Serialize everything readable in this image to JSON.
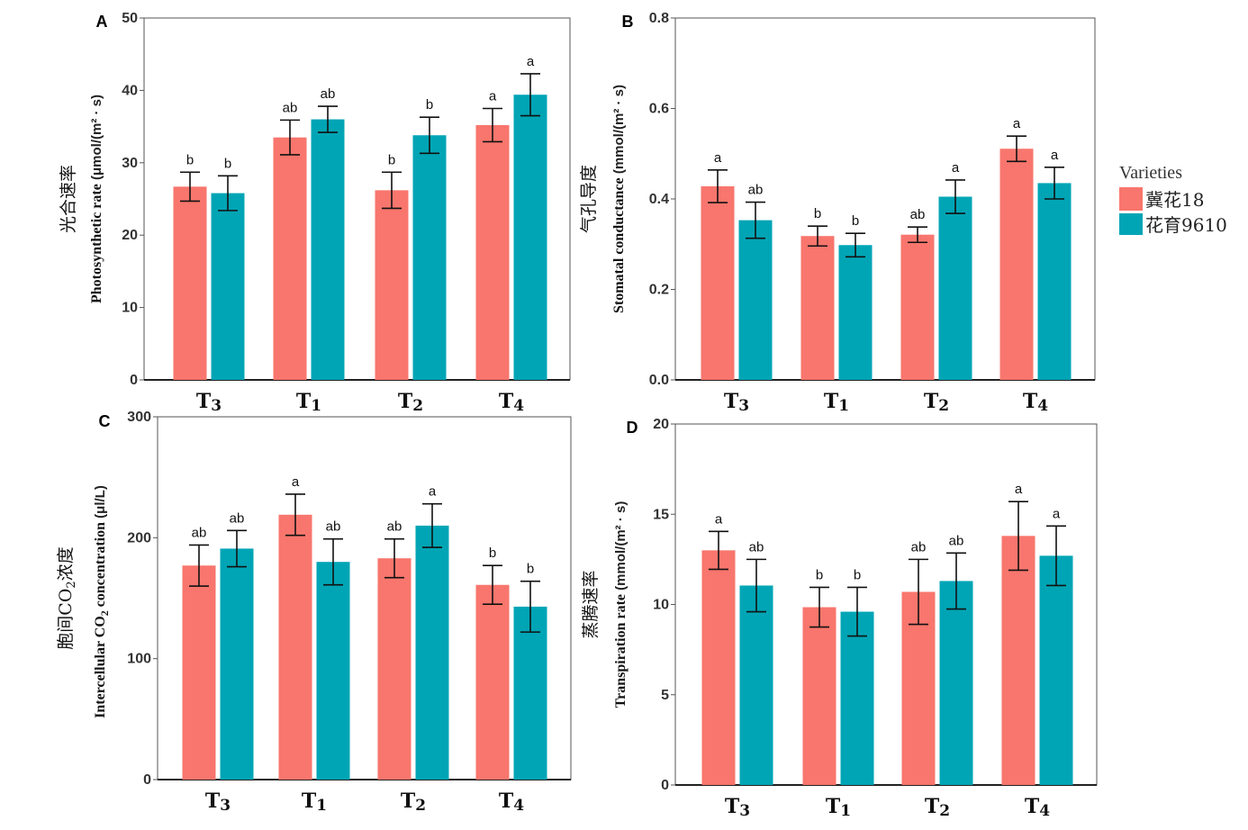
{
  "legend": {
    "title": "Varieties",
    "entries": [
      {
        "label": "冀花18",
        "color": "#F8766D"
      },
      {
        "label": "花育9610",
        "color": "#00A5B5"
      }
    ]
  },
  "chart_data": [
    {
      "panel": "A",
      "type": "bar",
      "ylabel_cn": "光合速率",
      "ylabel_en": "Photosynthetic rate",
      "ylabel_unit": "(μmol/(m² · s)",
      "ylim": [
        0,
        50
      ],
      "yticks": [
        "0",
        "10",
        "20",
        "30",
        "40",
        "50"
      ],
      "categories": [
        {
          "letter": "T",
          "sub": "3"
        },
        {
          "letter": "T",
          "sub": "1"
        },
        {
          "letter": "T",
          "sub": "2"
        },
        {
          "letter": "T",
          "sub": "4"
        }
      ],
      "series": [
        {
          "name": "冀花18",
          "values": [
            26.7,
            33.5,
            26.2,
            35.2
          ],
          "errors": [
            2.0,
            2.4,
            2.5,
            2.3
          ],
          "sig": [
            "b",
            "ab",
            "b",
            "a"
          ]
        },
        {
          "name": "花育9610",
          "values": [
            25.8,
            36.0,
            33.8,
            39.4
          ],
          "errors": [
            2.4,
            1.8,
            2.5,
            2.9
          ],
          "sig": [
            "b",
            "ab",
            "b",
            "a"
          ]
        }
      ]
    },
    {
      "panel": "B",
      "type": "bar",
      "ylabel_cn": "气孔导度",
      "ylabel_en": "Stomatal conductance",
      "ylabel_unit": "(mmol/(m² · s)",
      "ylim": [
        0,
        0.8
      ],
      "yticks": [
        "0.0",
        "0.2",
        "0.4",
        "0.6",
        "0.8"
      ],
      "categories": [
        {
          "letter": "T",
          "sub": "3"
        },
        {
          "letter": "T",
          "sub": "1"
        },
        {
          "letter": "T",
          "sub": "2"
        },
        {
          "letter": "T",
          "sub": "4"
        }
      ],
      "series": [
        {
          "name": "冀花18",
          "values": [
            0.428,
            0.318,
            0.321,
            0.511
          ],
          "errors": [
            0.036,
            0.022,
            0.017,
            0.028
          ],
          "sig": [
            "a",
            "b",
            "ab",
            "a"
          ]
        },
        {
          "name": "花育9610",
          "values": [
            0.353,
            0.298,
            0.405,
            0.435
          ],
          "errors": [
            0.04,
            0.026,
            0.037,
            0.035
          ],
          "sig": [
            "ab",
            "b",
            "a",
            "a"
          ]
        }
      ]
    },
    {
      "panel": "C",
      "type": "bar",
      "ylabel_cn_a": "胞间CO",
      "ylabel_cn_b": "浓度",
      "ylabel_en_a": "Intercellular CO",
      "ylabel_en_b": " concentration",
      "ylabel_sub": "2",
      "ylabel_unit": "(μl/L)",
      "ylim": [
        0,
        300
      ],
      "yticks": [
        "0",
        "100",
        "200",
        "300"
      ],
      "categories": [
        {
          "letter": "T",
          "sub": "3"
        },
        {
          "letter": "T",
          "sub": "1"
        },
        {
          "letter": "T",
          "sub": "2"
        },
        {
          "letter": "T",
          "sub": "4"
        }
      ],
      "series": [
        {
          "name": "冀花18",
          "values": [
            177,
            219,
            183,
            161
          ],
          "errors": [
            17,
            17,
            16,
            16
          ],
          "sig": [
            "ab",
            "a",
            "ab",
            "b"
          ]
        },
        {
          "name": "花育9610",
          "values": [
            191,
            180,
            210,
            143
          ],
          "errors": [
            15,
            19,
            18,
            21
          ],
          "sig": [
            "ab",
            "ab",
            "a",
            "b"
          ]
        }
      ]
    },
    {
      "panel": "D",
      "type": "bar",
      "ylabel_cn": "蒸腾速率",
      "ylabel_en": "Transpiration rate",
      "ylabel_unit": "(mmol/(m² · s)",
      "ylim": [
        0,
        20
      ],
      "yticks": [
        "0",
        "5",
        "10",
        "15",
        "20"
      ],
      "categories": [
        {
          "letter": "T",
          "sub": "3"
        },
        {
          "letter": "T",
          "sub": "1"
        },
        {
          "letter": "T",
          "sub": "2"
        },
        {
          "letter": "T",
          "sub": "4"
        }
      ],
      "series": [
        {
          "name": "冀花18",
          "values": [
            13.0,
            9.85,
            10.7,
            13.8
          ],
          "errors": [
            1.05,
            1.1,
            1.8,
            1.9
          ],
          "sig": [
            "a",
            "b",
            "ab",
            "a"
          ]
        },
        {
          "name": "花育9610",
          "values": [
            11.05,
            9.6,
            11.3,
            12.7
          ],
          "errors": [
            1.45,
            1.35,
            1.55,
            1.65
          ],
          "sig": [
            "ab",
            "b",
            "ab",
            "a"
          ]
        }
      ]
    }
  ]
}
